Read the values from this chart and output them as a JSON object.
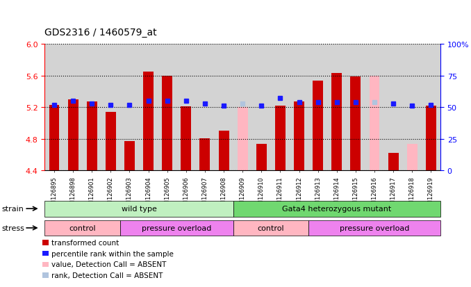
{
  "title": "GDS2316 / 1460579_at",
  "samples": [
    "GSM126895",
    "GSM126898",
    "GSM126901",
    "GSM126902",
    "GSM126903",
    "GSM126904",
    "GSM126905",
    "GSM126906",
    "GSM126907",
    "GSM126908",
    "GSM126909",
    "GSM126910",
    "GSM126911",
    "GSM126912",
    "GSM126913",
    "GSM126914",
    "GSM126915",
    "GSM126916",
    "GSM126917",
    "GSM126918",
    "GSM126919"
  ],
  "bar_values": [
    5.23,
    5.3,
    5.27,
    5.14,
    4.77,
    5.65,
    5.6,
    5.21,
    4.81,
    4.9,
    5.2,
    4.74,
    5.22,
    5.27,
    5.54,
    5.63,
    5.59,
    5.6,
    4.62,
    4.74,
    5.22
  ],
  "bar_absent": [
    false,
    false,
    false,
    false,
    false,
    false,
    false,
    false,
    false,
    false,
    true,
    false,
    false,
    false,
    false,
    false,
    false,
    true,
    false,
    true,
    false
  ],
  "rank_values": [
    52,
    55,
    53,
    52,
    52,
    55,
    55,
    55,
    53,
    51,
    53,
    51,
    57,
    54,
    54,
    54,
    54,
    54,
    53,
    51,
    52
  ],
  "rank_absent": [
    false,
    false,
    false,
    false,
    false,
    false,
    false,
    false,
    false,
    false,
    true,
    false,
    false,
    false,
    false,
    false,
    false,
    true,
    false,
    false,
    false
  ],
  "ylim_left": [
    4.4,
    6.0
  ],
  "ylim_right": [
    0,
    100
  ],
  "yticks_left": [
    4.4,
    4.8,
    5.2,
    5.6,
    6.0
  ],
  "yticks_right": [
    0,
    25,
    50,
    75,
    100
  ],
  "ytick_labels_right": [
    "0",
    "25",
    "50",
    "75",
    "100%"
  ],
  "bar_color_present": "#cc0000",
  "bar_color_absent": "#ffb6c1",
  "rank_color_present": "#1a1aff",
  "rank_color_absent": "#b0c4de",
  "bar_width": 0.55,
  "rank_marker_size": 5,
  "axis_area_color": "#d3d3d3",
  "bg_color": "#ffffff",
  "strain_groups": [
    {
      "label": "wild type",
      "start": 0,
      "end": 9,
      "color": "#c0f0c0"
    },
    {
      "label": "Gata4 heterozygous mutant",
      "start": 10,
      "end": 20,
      "color": "#70d870"
    }
  ],
  "stress_groups": [
    {
      "label": "control",
      "start": 0,
      "end": 3,
      "color": "#ffb6c1"
    },
    {
      "label": "pressure overload",
      "start": 4,
      "end": 9,
      "color": "#ee82ee"
    },
    {
      "label": "control",
      "start": 10,
      "end": 13,
      "color": "#ffb6c1"
    },
    {
      "label": "pressure overload",
      "start": 14,
      "end": 20,
      "color": "#ee82ee"
    }
  ],
  "legend_items": [
    {
      "color": "#cc0000",
      "label": "transformed count"
    },
    {
      "color": "#1a1aff",
      "label": "percentile rank within the sample"
    },
    {
      "color": "#ffb6c1",
      "label": "value, Detection Call = ABSENT"
    },
    {
      "color": "#b0c4de",
      "label": "rank, Detection Call = ABSENT"
    }
  ]
}
